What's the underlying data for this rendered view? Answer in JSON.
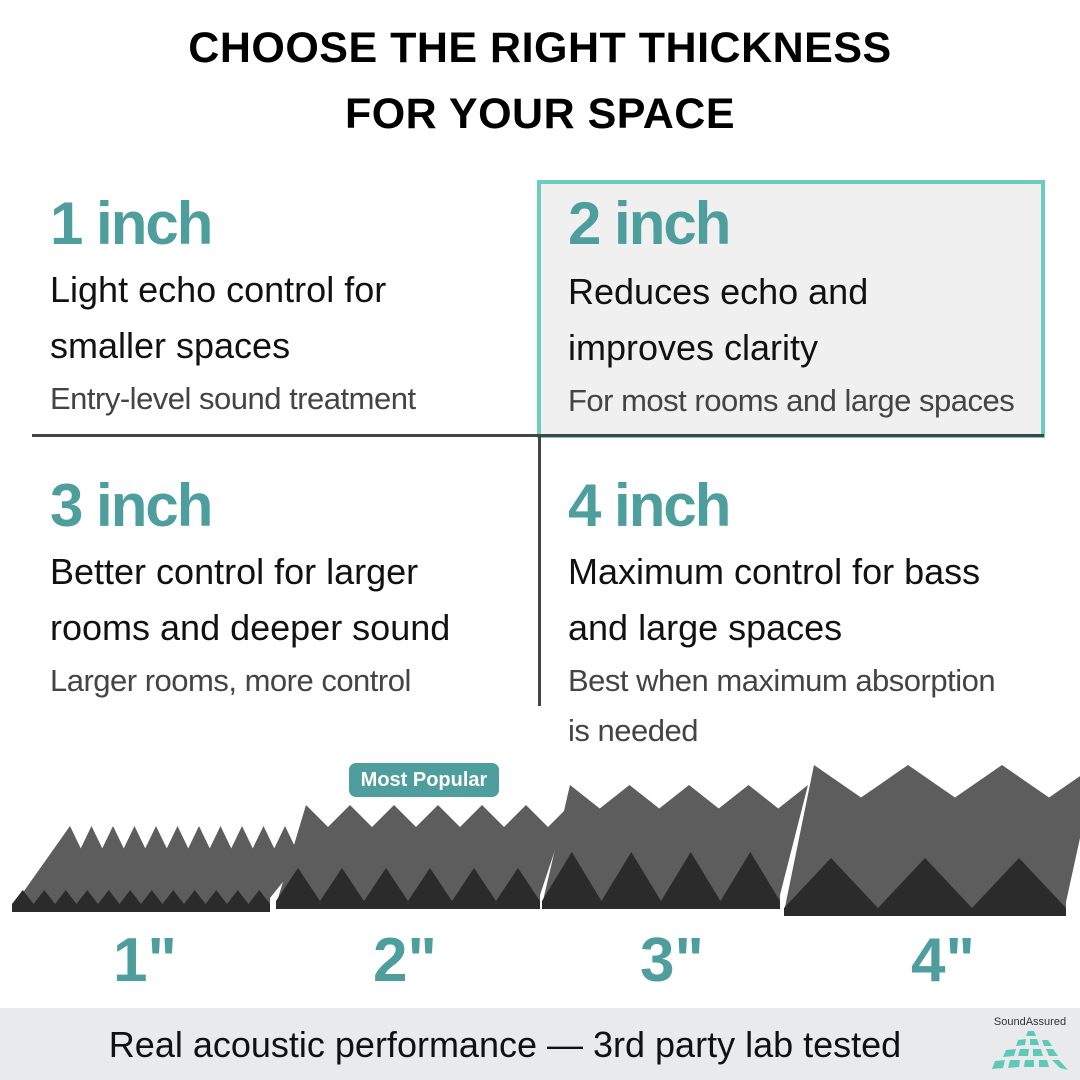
{
  "title": {
    "line1": "CHOOSE THE RIGHT THICKNESS",
    "line2": "FOR YOUR SPACE"
  },
  "options": [
    {
      "heading": "1 inch",
      "desc1": "Light echo control for",
      "desc2": "smaller spaces",
      "sub1": "Entry-level sound treatment",
      "sub2": ""
    },
    {
      "heading": "2 inch",
      "desc1": "Reduces echo and",
      "desc2": "improves clarity",
      "sub1": "For most rooms and large spaces",
      "sub2": "",
      "highlighted": true
    },
    {
      "heading": "3 inch",
      "desc1": "Better control for larger",
      "desc2": "rooms and deeper sound",
      "sub1": "Larger rooms, more control",
      "sub2": ""
    },
    {
      "heading": "4 inch",
      "desc1": "Maximum control for bass",
      "desc2": "and large spaces",
      "sub1": "Best when maximum absorption",
      "sub2": "is needed"
    }
  ],
  "badge": "Most Popular",
  "sizes": [
    "1\"",
    "2\"",
    "3\"",
    "4\""
  ],
  "footer": {
    "text": "Real acoustic performance — 3rd party lab tested",
    "brand": "SoundAssured"
  },
  "colors": {
    "accent": "#4e9e9e",
    "highlight_border": "#6acdbf",
    "highlight_fill": "#f0f0f0",
    "footer_bg": "#e9eaec"
  }
}
